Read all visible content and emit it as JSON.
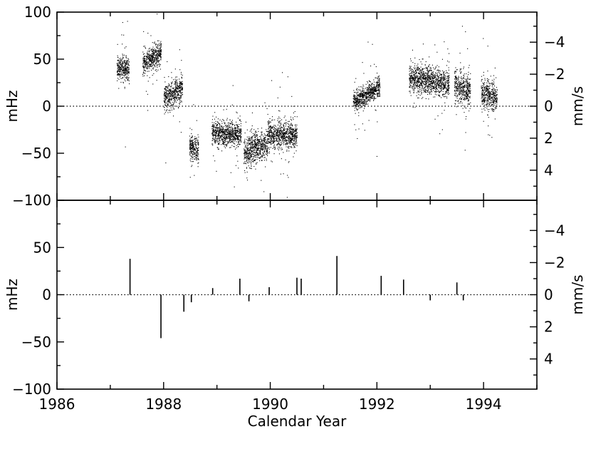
{
  "chart_data": [
    {
      "panel": "top",
      "type": "scatter",
      "title": "",
      "xlabel": "",
      "ylabel": "mHz",
      "y2label": "mm/s",
      "xlim": [
        1986,
        1995
      ],
      "ylim": [
        -100,
        100
      ],
      "xticks": [
        "1986",
        "1988",
        "1990",
        "1992",
        "1994"
      ],
      "yticks": [
        "100",
        "50",
        "0",
        "−50",
        "−100"
      ],
      "y2ticks": [
        "−4",
        "−2",
        "0",
        "2",
        "4"
      ],
      "mm_s_per_mHz": -0.0588,
      "reference_line_y": 0,
      "point_color": "#000000",
      "segments": [
        {
          "x": [
            1987.12,
            1987.35
          ],
          "y_start": 40,
          "y_end": 41,
          "scatter": 6
        },
        {
          "x": [
            1987.6,
            1987.95
          ],
          "y_start": 45,
          "y_end": 57,
          "scatter": 6
        },
        {
          "x": [
            1988.0,
            1988.35
          ],
          "y_start": 8,
          "y_end": 20,
          "scatter": 7
        },
        {
          "x": [
            1988.48,
            1988.65
          ],
          "y_start": -42,
          "y_end": -48,
          "scatter": 7
        },
        {
          "x": [
            1988.9,
            1989.45
          ],
          "y_start": -28,
          "y_end": -30,
          "scatter": 6
        },
        {
          "x": [
            1989.5,
            1989.95
          ],
          "y_start": -50,
          "y_end": -38,
          "scatter": 8
        },
        {
          "x": [
            1989.95,
            1990.5
          ],
          "y_start": -30,
          "y_end": -32,
          "scatter": 7
        },
        {
          "x": [
            1991.55,
            1992.05
          ],
          "y_start": 5,
          "y_end": 20,
          "scatter": 5
        },
        {
          "x": [
            1992.6,
            1993.35
          ],
          "y_start": 30,
          "y_end": 25,
          "scatter": 7
        },
        {
          "x": [
            1993.45,
            1993.75
          ],
          "y_start": 22,
          "y_end": 15,
          "scatter": 8
        },
        {
          "x": [
            1993.95,
            1994.25
          ],
          "y_start": 15,
          "y_end": 8,
          "scatter": 8
        }
      ]
    },
    {
      "panel": "bottom",
      "type": "bar",
      "title": "",
      "xlabel": "Calendar Year",
      "ylabel": "mHz",
      "y2label": "mm/s",
      "xlim": [
        1986,
        1995
      ],
      "ylim": [
        -100,
        100
      ],
      "xticks": [
        "1986",
        "1988",
        "1990",
        "1992",
        "1994"
      ],
      "yticks": [
        "50",
        "0",
        "−50",
        "−100"
      ],
      "y2ticks": [
        "−4",
        "−2",
        "0",
        "2",
        "4"
      ],
      "reference_line_y": 0,
      "x": [
        1987.37,
        1987.95,
        1988.38,
        1988.52,
        1988.92,
        1989.43,
        1989.6,
        1989.98,
        1990.5,
        1990.58,
        1991.25,
        1992.08,
        1992.5,
        1993.0,
        1993.5,
        1993.62
      ],
      "values": [
        38,
        -46,
        -18,
        -8,
        7,
        17,
        -7,
        8,
        18,
        17,
        41,
        20,
        16,
        -6,
        13,
        -6
      ]
    }
  ]
}
